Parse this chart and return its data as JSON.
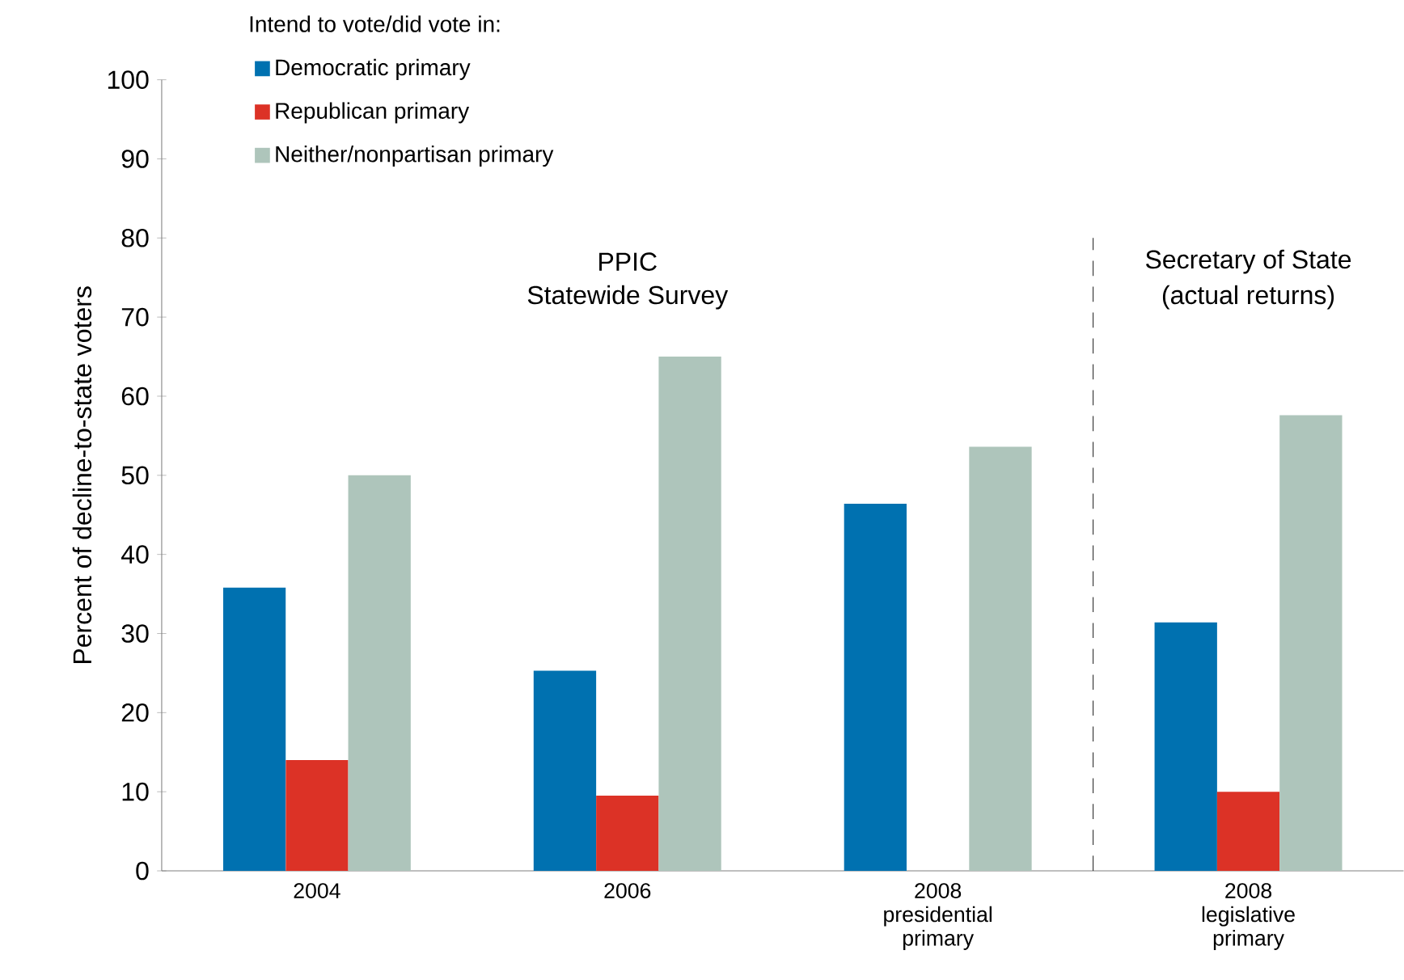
{
  "chart_data": {
    "type": "bar",
    "ylabel": "Percent of decline-to-state voters",
    "legend_title": "Intend to vote/did vote in:",
    "categories": [
      "2004",
      "2006",
      "2008 presidential primary",
      "2008 legislative primary"
    ],
    "series": [
      {
        "name": "Democratic primary",
        "color": "#0071b0",
        "values": [
          35.8,
          25.3,
          46.4,
          31.4
        ]
      },
      {
        "name": "Republican primary",
        "color": "#dc3226",
        "values": [
          14,
          9.5,
          null,
          10
        ]
      },
      {
        "name": "Neither/nonpartisan primary",
        "color": "#aec5bb",
        "values": [
          50,
          65,
          53.6,
          57.6
        ]
      }
    ],
    "ylim": [
      0,
      100
    ],
    "yticks": [
      0,
      10,
      20,
      30,
      40,
      50,
      60,
      70,
      80,
      90,
      100
    ],
    "legend": "top left",
    "grid": false,
    "annotations": [
      "PPIC",
      "Statewide Survey",
      "Secretary of State",
      "(actual returns)"
    ]
  }
}
